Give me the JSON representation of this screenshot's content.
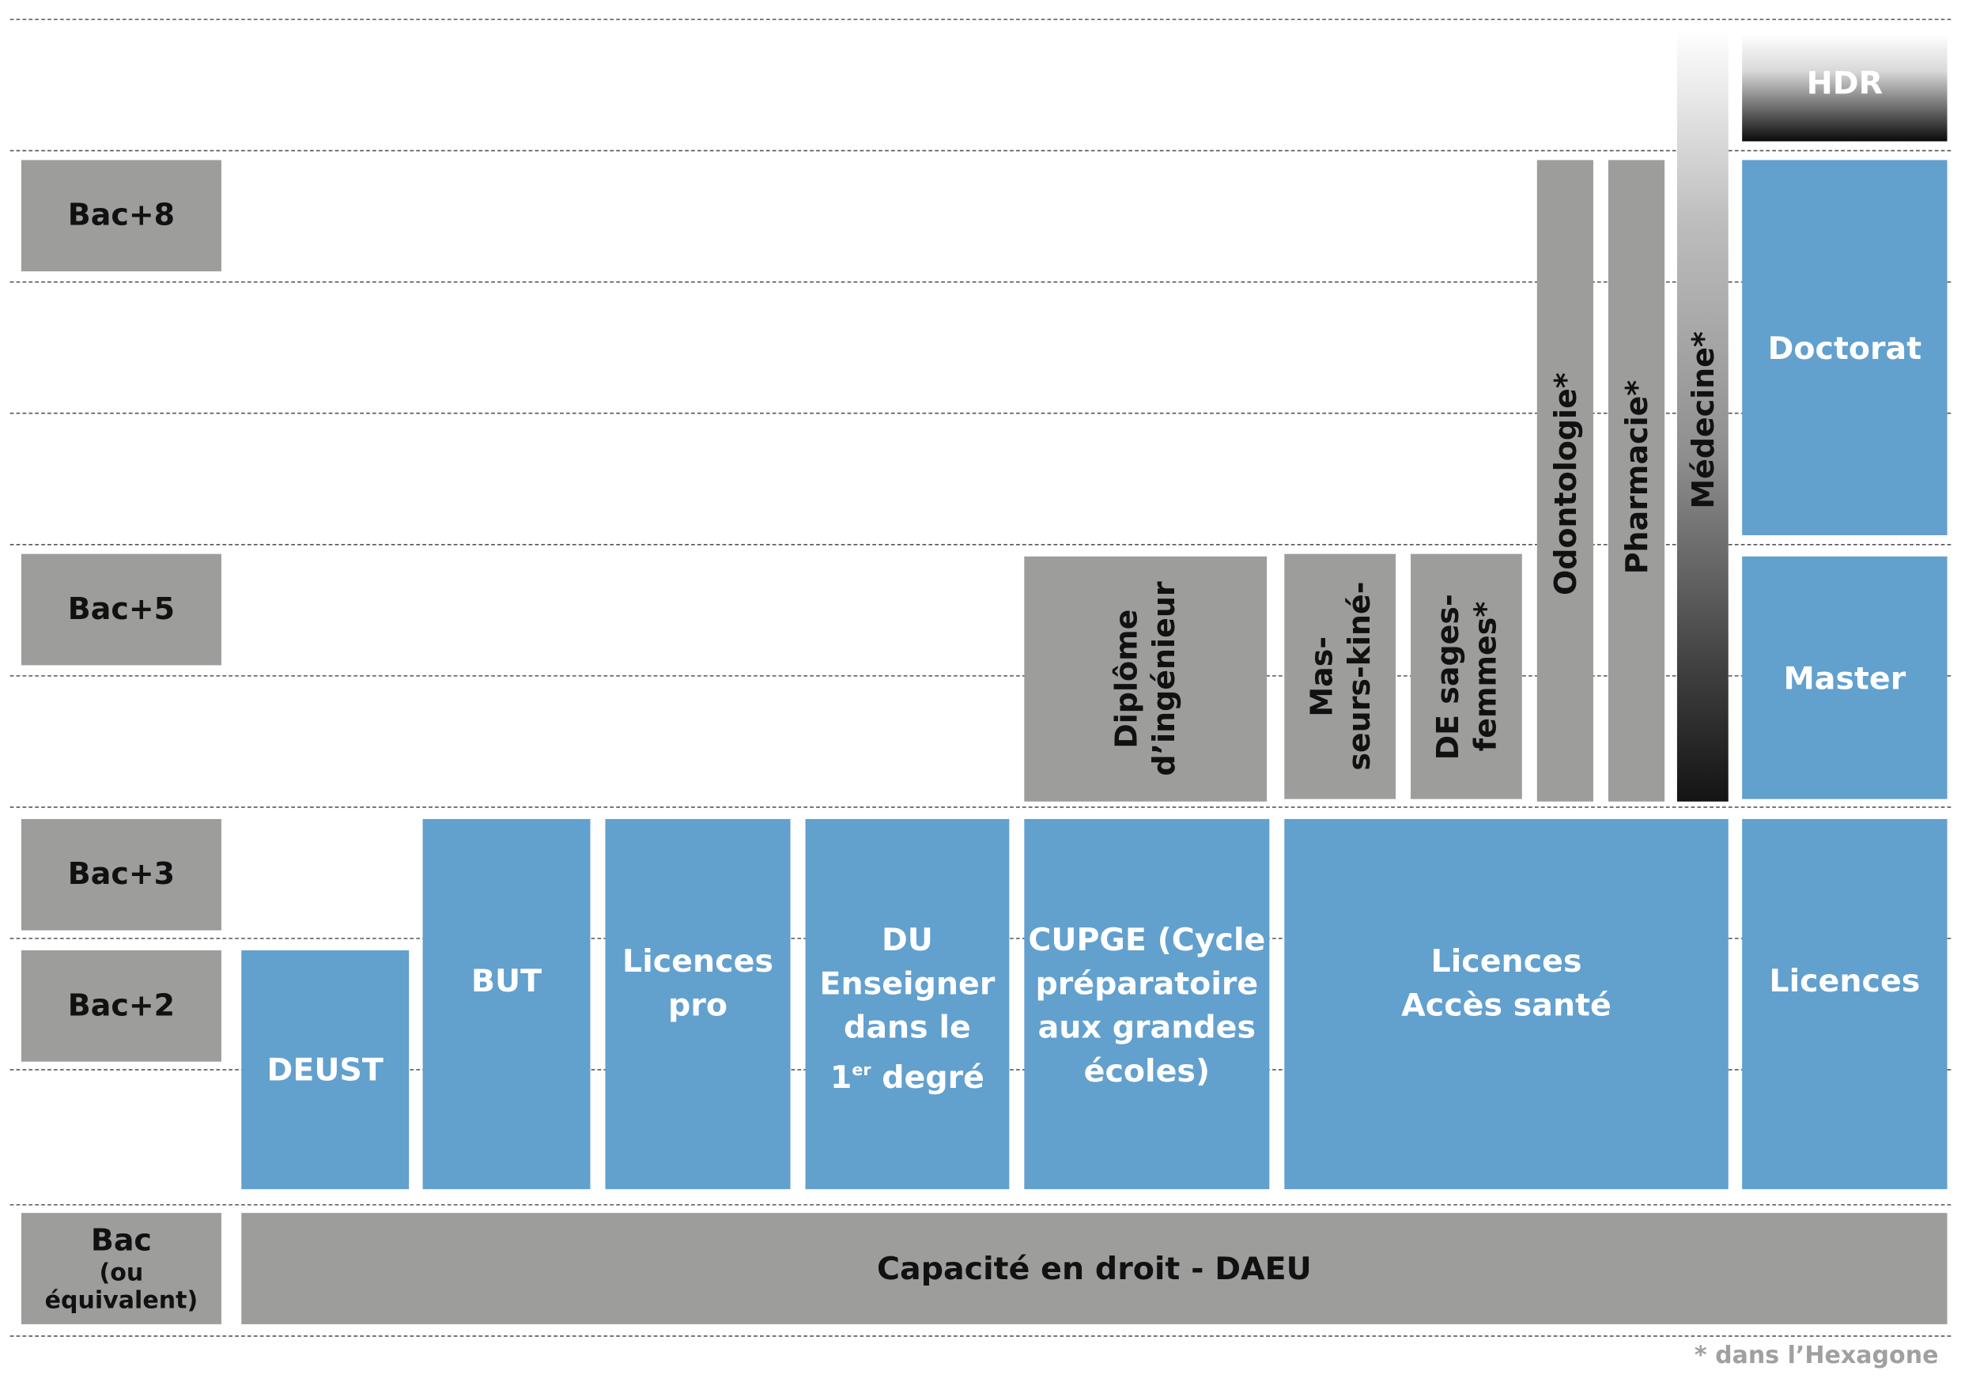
{
  "levels": {
    "bac8": "Bac+8",
    "bac5": "Bac+5",
    "bac3": "Bac+3",
    "bac2": "Bac+2",
    "bac": "Bac",
    "bac_sub": "(ou équivalent)"
  },
  "programs": {
    "hdr": "HDR",
    "doctorat": "Doctorat",
    "master": "Master",
    "licences": "Licences",
    "medecine": "Médecine*",
    "pharmacie": "Pharmacie*",
    "odontologie": "Odontologie*",
    "de_sages_femmes_1": "DE sages-",
    "de_sages_femmes_2": "femmes*",
    "masseurs_kine_1": "Mas-",
    "masseurs_kine_2": "seurs-kiné-",
    "diplome_ingenieur_1": "Diplôme",
    "diplome_ingenieur_2": "d’ingénieur",
    "deust": "DEUST",
    "but": "BUT",
    "licences_pro_1": "Licences",
    "licences_pro_2": "pro",
    "du_1": "DU",
    "du_2": "Enseigner",
    "du_3": "dans le",
    "du_4_a": "1",
    "du_4_sup": "er",
    "du_4_b": " degré",
    "cupge_1": "CUPGE (Cycle",
    "cupge_2": "préparatoire",
    "cupge_3": "aux grandes",
    "cupge_4": "écoles)",
    "licences_acces_sante_1": "Licences",
    "licences_acces_sante_2": "Accès santé",
    "capacite": "Capacité en droit - DAEU"
  },
  "footnote": "* dans l’Hexagone",
  "colors": {
    "blue": "#62a0ce",
    "grey": "#9d9d9c",
    "dark": "#111111"
  }
}
